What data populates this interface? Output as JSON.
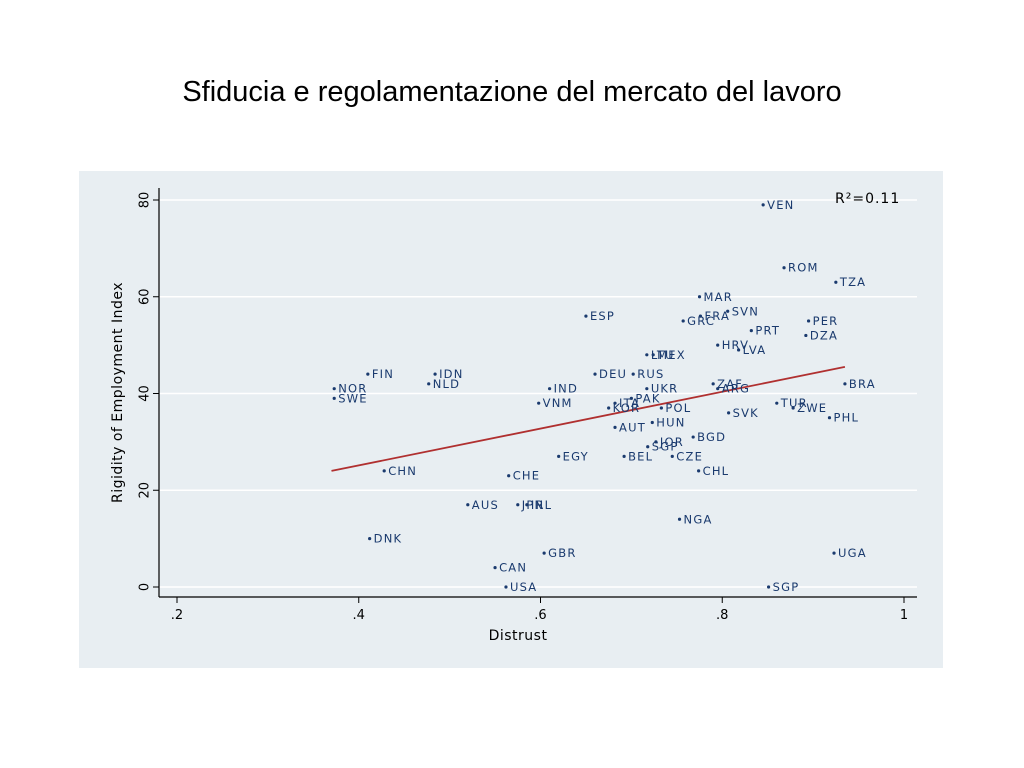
{
  "slide": {
    "title": "Sfiducia e regolamentazione del mercato del lavoro"
  },
  "chart_data": {
    "type": "scatter",
    "xlabel": "Distrust",
    "ylabel": "Rigidity of Employment Index",
    "xlim": [
      0.2,
      1.0
    ],
    "ylim": [
      0,
      80
    ],
    "xticks": [
      ".2",
      ".4",
      ".6",
      ".8",
      "1"
    ],
    "yticks": [
      "0",
      "20",
      "40",
      "60",
      "80"
    ],
    "annotation": "R²=0.11",
    "grid": true,
    "colors": {
      "points": "#1a3a6e",
      "fit_line": "#b03030",
      "grid": "#ffffff",
      "panel": "#e8eef2"
    },
    "fit_line": {
      "x": [
        0.37,
        0.935
      ],
      "y": [
        24,
        45.5
      ]
    },
    "points": [
      {
        "label": "VEN",
        "x": 0.845,
        "y": 79
      },
      {
        "label": "ROM",
        "x": 0.868,
        "y": 66
      },
      {
        "label": "TZA",
        "x": 0.925,
        "y": 63
      },
      {
        "label": "MAR",
        "x": 0.775,
        "y": 60
      },
      {
        "label": "SVN",
        "x": 0.806,
        "y": 57
      },
      {
        "label": "FRA",
        "x": 0.776,
        "y": 56
      },
      {
        "label": "PER",
        "x": 0.895,
        "y": 55
      },
      {
        "label": "ESP",
        "x": 0.65,
        "y": 56
      },
      {
        "label": "GRC",
        "x": 0.757,
        "y": 55
      },
      {
        "label": "PRT",
        "x": 0.832,
        "y": 53
      },
      {
        "label": "DZA",
        "x": 0.892,
        "y": 52
      },
      {
        "label": "HRV",
        "x": 0.795,
        "y": 50
      },
      {
        "label": "LVA",
        "x": 0.818,
        "y": 49
      },
      {
        "label": "LTU",
        "x": 0.717,
        "y": 48
      },
      {
        "label": "MEX",
        "x": 0.724,
        "y": 48
      },
      {
        "label": "FIN",
        "x": 0.41,
        "y": 44
      },
      {
        "label": "IDN",
        "x": 0.484,
        "y": 44
      },
      {
        "label": "DEU",
        "x": 0.66,
        "y": 44
      },
      {
        "label": "RUS",
        "x": 0.702,
        "y": 44
      },
      {
        "label": "NLD",
        "x": 0.477,
        "y": 42
      },
      {
        "label": "NOR",
        "x": 0.373,
        "y": 41
      },
      {
        "label": "IND",
        "x": 0.61,
        "y": 41
      },
      {
        "label": "UKR",
        "x": 0.717,
        "y": 41
      },
      {
        "label": "ZAF",
        "x": 0.79,
        "y": 42
      },
      {
        "label": "ARG",
        "x": 0.795,
        "y": 41
      },
      {
        "label": "BRA",
        "x": 0.935,
        "y": 42
      },
      {
        "label": "SWE",
        "x": 0.373,
        "y": 39
      },
      {
        "label": "PAK",
        "x": 0.7,
        "y": 39
      },
      {
        "label": "VNM",
        "x": 0.598,
        "y": 38
      },
      {
        "label": "ITA",
        "x": 0.682,
        "y": 38
      },
      {
        "label": "KOR",
        "x": 0.675,
        "y": 37
      },
      {
        "label": "POL",
        "x": 0.733,
        "y": 37
      },
      {
        "label": "TUR",
        "x": 0.86,
        "y": 38
      },
      {
        "label": "ZWE",
        "x": 0.878,
        "y": 37
      },
      {
        "label": "SVK",
        "x": 0.807,
        "y": 36
      },
      {
        "label": "PHL",
        "x": 0.918,
        "y": 35
      },
      {
        "label": "HUN",
        "x": 0.723,
        "y": 34
      },
      {
        "label": "AUT",
        "x": 0.682,
        "y": 33
      },
      {
        "label": "BGD",
        "x": 0.768,
        "y": 31
      },
      {
        "label": "JOR",
        "x": 0.727,
        "y": 30
      },
      {
        "label": "SGP",
        "x": 0.718,
        "y": 29
      },
      {
        "label": "EGY",
        "x": 0.62,
        "y": 27
      },
      {
        "label": "BEL",
        "x": 0.692,
        "y": 27
      },
      {
        "label": "CZE",
        "x": 0.745,
        "y": 27
      },
      {
        "label": "CHN",
        "x": 0.428,
        "y": 24
      },
      {
        "label": "CHL",
        "x": 0.774,
        "y": 24
      },
      {
        "label": "CHE",
        "x": 0.565,
        "y": 23
      },
      {
        "label": "AUS",
        "x": 0.52,
        "y": 17
      },
      {
        "label": "JPN",
        "x": 0.575,
        "y": 17
      },
      {
        "label": "IRL",
        "x": 0.585,
        "y": 17
      },
      {
        "label": "NGA",
        "x": 0.753,
        "y": 14
      },
      {
        "label": "DNK",
        "x": 0.412,
        "y": 10
      },
      {
        "label": "GBR",
        "x": 0.604,
        "y": 7
      },
      {
        "label": "UGA",
        "x": 0.923,
        "y": 7
      },
      {
        "label": "CAN",
        "x": 0.55,
        "y": 4
      },
      {
        "label": "USA",
        "x": 0.562,
        "y": 0
      },
      {
        "label": "SGP",
        "x": 0.851,
        "y": 0
      }
    ]
  }
}
